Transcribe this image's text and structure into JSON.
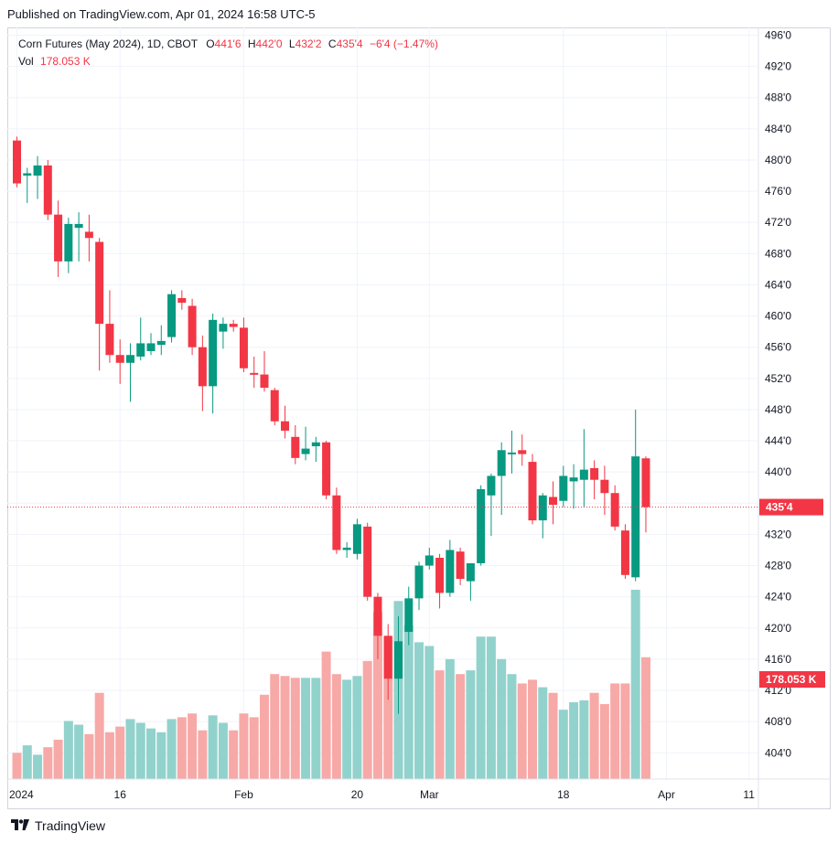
{
  "published": "Published on TradingView.com, Apr 01, 2024 16:58 UTC-5",
  "legend": {
    "symbol": "Corn Futures (May 2024), 1D, CBOT",
    "o_label": "O",
    "o_value": "441'6",
    "h_label": "H",
    "h_value": "442'0",
    "l_label": "L",
    "l_value": "432'2",
    "c_label": "C",
    "c_value": "435'4",
    "change": "−6'4 (−1.47%)",
    "vol_label": "Vol",
    "vol_value": "178.053 K"
  },
  "footer": {
    "brand": "TradingView"
  },
  "colors": {
    "up": "#089981",
    "down": "#f23645",
    "vol_up": "#92d2cc",
    "vol_down": "#f7a9a7",
    "grid": "#f0f3fa"
  },
  "chart_data": {
    "type": "candlestick",
    "title": "Corn Futures (May 2024), 1D, CBOT",
    "price_axis": {
      "ticks": [
        "496'0",
        "492'0",
        "488'0",
        "484'0",
        "480'0",
        "476'0",
        "472'0",
        "468'0",
        "464'0",
        "460'0",
        "456'0",
        "452'0",
        "448'0",
        "444'0",
        "440'0",
        "436'0",
        "432'0",
        "428'0",
        "424'0",
        "420'0",
        "416'0",
        "412'0",
        "408'0",
        "404'0"
      ],
      "range": [
        402.5,
        497.5
      ],
      "last_price_label": "435'4",
      "last_price": 435.5,
      "volume_label": "178.053 K"
    },
    "time_axis": {
      "labels": [
        "2024",
        "16",
        "Feb",
        "20",
        "Mar",
        "18",
        "Apr",
        "11"
      ]
    },
    "candles": [
      {
        "date": "2024-01-02",
        "o": 482.5,
        "h": 483.0,
        "l": 476.5,
        "c": 477.0
      },
      {
        "date": "2024-01-03",
        "o": 478.0,
        "h": 479.0,
        "l": 474.5,
        "c": 478.3
      },
      {
        "date": "2024-01-04",
        "o": 478.0,
        "h": 480.5,
        "l": 475.0,
        "c": 479.3
      },
      {
        "date": "2024-01-05",
        "o": 479.3,
        "h": 480.0,
        "l": 472.3,
        "c": 473.0
      },
      {
        "date": "2024-01-08",
        "o": 473.0,
        "h": 474.8,
        "l": 465.0,
        "c": 467.0
      },
      {
        "date": "2024-01-09",
        "o": 467.0,
        "h": 472.6,
        "l": 465.5,
        "c": 471.8
      },
      {
        "date": "2024-01-10",
        "o": 471.3,
        "h": 473.3,
        "l": 467.0,
        "c": 471.8
      },
      {
        "date": "2024-01-11",
        "o": 470.8,
        "h": 473.0,
        "l": 467.0,
        "c": 470.0
      },
      {
        "date": "2024-01-12",
        "o": 469.5,
        "h": 470.0,
        "l": 453.0,
        "c": 459.0
      },
      {
        "date": "2024-01-16",
        "o": 459.0,
        "h": 463.3,
        "l": 454.0,
        "c": 455.0
      },
      {
        "date": "2024-01-17",
        "o": 455.0,
        "h": 457.0,
        "l": 451.3,
        "c": 454.0
      },
      {
        "date": "2024-01-18",
        "o": 454.0,
        "h": 456.5,
        "l": 449.0,
        "c": 455.0
      },
      {
        "date": "2024-01-19",
        "o": 454.8,
        "h": 459.8,
        "l": 454.3,
        "c": 456.5
      },
      {
        "date": "2024-01-22",
        "o": 455.5,
        "h": 457.8,
        "l": 455.0,
        "c": 456.5
      },
      {
        "date": "2024-01-23",
        "o": 456.3,
        "h": 458.8,
        "l": 455.0,
        "c": 456.8
      },
      {
        "date": "2024-01-24",
        "o": 457.3,
        "h": 463.3,
        "l": 456.6,
        "c": 462.8
      },
      {
        "date": "2024-01-25",
        "o": 462.3,
        "h": 463.3,
        "l": 460.8,
        "c": 461.7
      },
      {
        "date": "2024-01-26",
        "o": 461.3,
        "h": 462.2,
        "l": 455.0,
        "c": 456.0
      },
      {
        "date": "2024-01-29",
        "o": 456.0,
        "h": 457.5,
        "l": 447.8,
        "c": 451.0
      },
      {
        "date": "2024-01-30",
        "o": 451.0,
        "h": 460.3,
        "l": 447.5,
        "c": 459.5
      },
      {
        "date": "2024-01-31",
        "o": 458.0,
        "h": 459.8,
        "l": 455.8,
        "c": 459.0
      },
      {
        "date": "2024-02-01",
        "o": 459.0,
        "h": 459.5,
        "l": 458.0,
        "c": 458.6
      },
      {
        "date": "2024-02-02",
        "o": 458.5,
        "h": 459.8,
        "l": 452.8,
        "c": 453.3
      },
      {
        "date": "2024-02-05",
        "o": 452.7,
        "h": 454.8,
        "l": 450.8,
        "c": 452.5
      },
      {
        "date": "2024-02-06",
        "o": 452.5,
        "h": 455.5,
        "l": 450.3,
        "c": 450.8
      },
      {
        "date": "2024-02-07",
        "o": 450.5,
        "h": 450.8,
        "l": 446.0,
        "c": 446.5
      },
      {
        "date": "2024-02-08",
        "o": 446.5,
        "h": 448.5,
        "l": 444.3,
        "c": 445.3
      },
      {
        "date": "2024-02-09",
        "o": 444.5,
        "h": 446.0,
        "l": 441.0,
        "c": 441.8
      },
      {
        "date": "2024-02-12",
        "o": 442.3,
        "h": 445.8,
        "l": 441.5,
        "c": 443.0
      },
      {
        "date": "2024-02-13",
        "o": 443.3,
        "h": 444.5,
        "l": 441.3,
        "c": 443.8
      },
      {
        "date": "2024-02-14",
        "o": 443.8,
        "h": 444.0,
        "l": 436.5,
        "c": 437.0
      },
      {
        "date": "2024-02-15",
        "o": 437.0,
        "h": 438.0,
        "l": 429.5,
        "c": 430.0
      },
      {
        "date": "2024-02-16",
        "o": 430.0,
        "h": 431.0,
        "l": 429.0,
        "c": 430.3
      },
      {
        "date": "2024-02-20",
        "o": 429.5,
        "h": 434.0,
        "l": 428.8,
        "c": 433.3
      },
      {
        "date": "2024-02-21",
        "o": 433.0,
        "h": 433.5,
        "l": 423.5,
        "c": 424.0
      },
      {
        "date": "2024-02-22",
        "o": 424.0,
        "h": 424.5,
        "l": 416.0,
        "c": 419.0
      },
      {
        "date": "2024-02-23",
        "o": 419.0,
        "h": 420.5,
        "l": 410.8,
        "c": 413.5
      },
      {
        "date": "2024-02-26",
        "o": 413.5,
        "h": 421.5,
        "l": 409.0,
        "c": 418.3
      },
      {
        "date": "2024-02-27",
        "o": 419.5,
        "h": 425.3,
        "l": 417.8,
        "c": 423.8
      },
      {
        "date": "2024-02-28",
        "o": 423.8,
        "h": 428.5,
        "l": 422.3,
        "c": 428.0
      },
      {
        "date": "2024-02-29",
        "o": 428.0,
        "h": 430.3,
        "l": 427.5,
        "c": 429.3
      },
      {
        "date": "2024-03-01",
        "o": 429.0,
        "h": 429.5,
        "l": 422.5,
        "c": 424.5
      },
      {
        "date": "2024-03-04",
        "o": 424.5,
        "h": 431.3,
        "l": 424.0,
        "c": 430.0
      },
      {
        "date": "2024-03-05",
        "o": 429.8,
        "h": 430.3,
        "l": 425.5,
        "c": 426.3
      },
      {
        "date": "2024-03-06",
        "o": 426.0,
        "h": 428.0,
        "l": 423.5,
        "c": 428.3
      },
      {
        "date": "2024-03-07",
        "o": 428.3,
        "h": 438.3,
        "l": 428.0,
        "c": 437.8
      },
      {
        "date": "2024-03-08",
        "o": 437.0,
        "h": 439.8,
        "l": 431.8,
        "c": 439.5
      },
      {
        "date": "2024-03-11",
        "o": 439.5,
        "h": 443.8,
        "l": 434.5,
        "c": 442.8
      },
      {
        "date": "2024-03-12",
        "o": 442.3,
        "h": 445.3,
        "l": 439.8,
        "c": 442.5
      },
      {
        "date": "2024-03-13",
        "o": 442.8,
        "h": 444.8,
        "l": 440.8,
        "c": 442.3
      },
      {
        "date": "2024-03-14",
        "o": 441.3,
        "h": 442.3,
        "l": 433.3,
        "c": 433.8
      },
      {
        "date": "2024-03-15",
        "o": 433.8,
        "h": 437.3,
        "l": 431.5,
        "c": 437.0
      },
      {
        "date": "2024-03-18",
        "o": 436.8,
        "h": 438.8,
        "l": 433.3,
        "c": 435.8
      },
      {
        "date": "2024-03-19",
        "o": 436.3,
        "h": 440.8,
        "l": 435.5,
        "c": 439.5
      },
      {
        "date": "2024-03-20",
        "o": 438.8,
        "h": 441.0,
        "l": 435.3,
        "c": 439.3
      },
      {
        "date": "2024-03-21",
        "o": 439.0,
        "h": 445.5,
        "l": 435.5,
        "c": 440.3
      },
      {
        "date": "2024-03-22",
        "o": 440.5,
        "h": 441.5,
        "l": 436.5,
        "c": 439.0
      },
      {
        "date": "2024-03-25",
        "o": 439.0,
        "h": 440.8,
        "l": 434.5,
        "c": 437.3
      },
      {
        "date": "2024-03-26",
        "o": 437.3,
        "h": 438.3,
        "l": 432.5,
        "c": 433.0
      },
      {
        "date": "2024-03-27",
        "o": 432.5,
        "h": 433.3,
        "l": 426.3,
        "c": 426.8
      },
      {
        "date": "2024-03-28",
        "o": 426.5,
        "h": 448.0,
        "l": 426.0,
        "c": 442.0
      },
      {
        "date": "2024-04-01",
        "o": 441.75,
        "h": 442.0,
        "l": 432.25,
        "c": 435.5
      }
    ],
    "volume": {
      "range_max": 100,
      "values": [
        14,
        18,
        13,
        17,
        21,
        31,
        29,
        24,
        46,
        25,
        28,
        32,
        30,
        27,
        25,
        32,
        33,
        35,
        26,
        34,
        30,
        26,
        35,
        33,
        45,
        56,
        55,
        54,
        54,
        54,
        68,
        56,
        53,
        55,
        63,
        89,
        76,
        95,
        82,
        73,
        71,
        58,
        64,
        56,
        58,
        76,
        76,
        64,
        56,
        51,
        53,
        49,
        46,
        37,
        41,
        42,
        46,
        40,
        51,
        51,
        101,
        65
      ]
    }
  }
}
